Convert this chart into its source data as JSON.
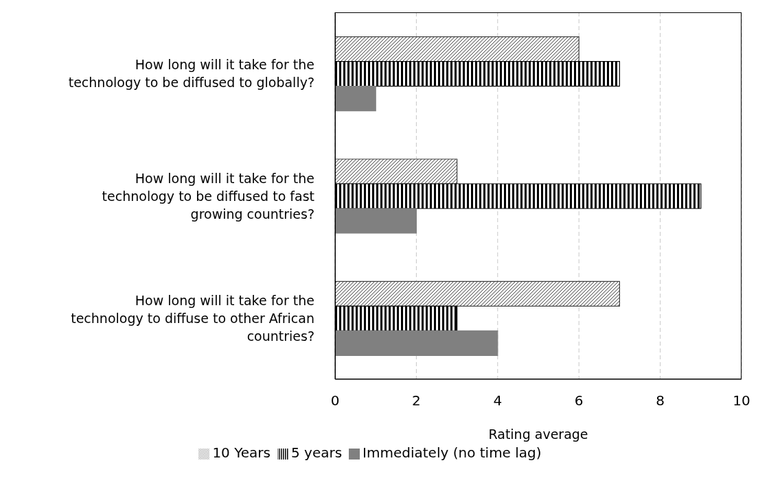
{
  "chart_data": {
    "type": "bar",
    "orientation": "horizontal",
    "xlabel": "Rating average",
    "categories": [
      "How long will it take for the technology to be diffused to globally?",
      "How long will it take for the technology to be diffused to fast growing countries?",
      "How long will it take for the technology to diffuse to other African countries?"
    ],
    "series": [
      {
        "name": "10 Years",
        "color": "#404040",
        "values": [
          6,
          3,
          7
        ]
      },
      {
        "name": "5 years",
        "color": "#000000",
        "values": [
          7,
          9,
          3
        ]
      },
      {
        "name": "Immediately (no time lag)",
        "color": "#808080",
        "values": [
          1,
          2,
          4
        ]
      }
    ],
    "xlim": [
      0,
      10
    ],
    "xticks": [
      0,
      2,
      4,
      6,
      8,
      10
    ],
    "grid": "x",
    "legend": "bottom"
  }
}
